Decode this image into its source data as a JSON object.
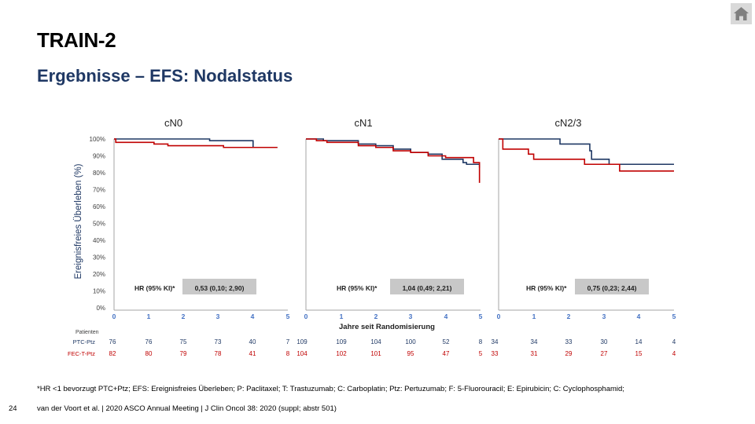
{
  "header": {
    "title": "TRAIN-2",
    "subtitle": "Ergebnisse – EFS: Nodalstatus"
  },
  "icons": {
    "home": "home-icon"
  },
  "colors": {
    "ptc": "#1f3864",
    "fec": "#c00000",
    "hr_box": "#c8c8c8",
    "axis": "#4472c4",
    "label": "#1f3864"
  },
  "chart_data": {
    "type": "line",
    "ylabel": "Ereignisfreies Überleben (%)",
    "xlabel": "Jahre seit Randomisierung",
    "y_ticks": [
      "0%",
      "10%",
      "20%",
      "30%",
      "40%",
      "50%",
      "60%",
      "70%",
      "80%",
      "90%",
      "100%"
    ],
    "x_ticks": [
      "0",
      "1",
      "2",
      "3",
      "4",
      "5"
    ],
    "ylim": [
      0,
      100
    ],
    "xlim": [
      0,
      5
    ],
    "hr_label": "HR (95% KI)*",
    "risk_table": {
      "header": "Patienten",
      "rows": [
        "PTC-Ptz",
        "FEC-T-Ptz"
      ]
    },
    "panels": [
      {
        "title": "cN0",
        "hr_value": "0,53 (0,10; 2,90)",
        "series": [
          {
            "name": "PTC-Ptz",
            "points": [
              [
                0,
                100
              ],
              [
                2.7,
                100
              ],
              [
                2.75,
                99
              ],
              [
                3.9,
                99
              ],
              [
                4,
                95
              ],
              [
                4.7,
                95
              ]
            ]
          },
          {
            "name": "FEC-T-Ptz",
            "points": [
              [
                0,
                100
              ],
              [
                0.05,
                98
              ],
              [
                1.1,
                98
              ],
              [
                1.15,
                97
              ],
              [
                1.5,
                97
              ],
              [
                1.55,
                96
              ],
              [
                3.1,
                96
              ],
              [
                3.15,
                95
              ],
              [
                4.7,
                95
              ]
            ]
          }
        ],
        "at_risk": {
          "PTC-Ptz": [
            "76",
            "76",
            "75",
            "73",
            "40",
            "7"
          ],
          "FEC-T-Ptz": [
            "82",
            "80",
            "79",
            "78",
            "41",
            "8"
          ]
        }
      },
      {
        "title": "cN1",
        "hr_value": "1,04 (0,49; 2,21)",
        "series": [
          {
            "name": "PTC-Ptz",
            "points": [
              [
                0,
                100
              ],
              [
                0.5,
                99
              ],
              [
                1.2,
                99
              ],
              [
                1.5,
                97
              ],
              [
                2,
                96
              ],
              [
                2.5,
                94
              ],
              [
                3,
                92
              ],
              [
                3.5,
                91
              ],
              [
                3.9,
                88
              ],
              [
                4.5,
                86
              ],
              [
                4.6,
                85
              ],
              [
                4.95,
                85
              ],
              [
                4.97,
                83
              ]
            ]
          },
          {
            "name": "FEC-T-Ptz",
            "points": [
              [
                0,
                100
              ],
              [
                0.3,
                99
              ],
              [
                0.6,
                98
              ],
              [
                1.2,
                98
              ],
              [
                1.5,
                96
              ],
              [
                2,
                95
              ],
              [
                2.5,
                93
              ],
              [
                3,
                92
              ],
              [
                3.5,
                90
              ],
              [
                4,
                89
              ],
              [
                4.7,
                89
              ],
              [
                4.8,
                86
              ],
              [
                4.95,
                86
              ],
              [
                4.97,
                74
              ]
            ]
          }
        ],
        "at_risk": {
          "PTC-Ptz": [
            "109",
            "109",
            "104",
            "100",
            "52",
            "8"
          ],
          "FEC-T-Ptz": [
            "104",
            "102",
            "101",
            "95",
            "47",
            "5"
          ]
        }
      },
      {
        "title": "cN2/3",
        "hr_value": "0,75 (0,23; 2,44)",
        "series": [
          {
            "name": "PTC-Ptz",
            "points": [
              [
                0,
                100
              ],
              [
                1.7,
                100
              ],
              [
                1.75,
                97
              ],
              [
                2.5,
                97
              ],
              [
                2.6,
                93
              ],
              [
                2.65,
                88
              ],
              [
                3.1,
                88
              ],
              [
                3.15,
                85
              ],
              [
                5,
                85
              ]
            ]
          },
          {
            "name": "FEC-T-Ptz",
            "points": [
              [
                0,
                100
              ],
              [
                0.1,
                100
              ],
              [
                0.12,
                94
              ],
              [
                0.8,
                94
              ],
              [
                0.85,
                91
              ],
              [
                0.95,
                91
              ],
              [
                1,
                88
              ],
              [
                2.4,
                88
              ],
              [
                2.45,
                85
              ],
              [
                3.4,
                85
              ],
              [
                3.45,
                81
              ],
              [
                5,
                81
              ]
            ]
          }
        ],
        "at_risk": {
          "PTC-Ptz": [
            "34",
            "34",
            "33",
            "30",
            "14",
            "4"
          ],
          "FEC-T-Ptz": [
            "33",
            "31",
            "29",
            "27",
            "15",
            "4"
          ]
        }
      }
    ]
  },
  "footer": {
    "footnote": "*HR <1 bevorzugt PTC+Ptz; EFS: Ereignisfreies Überleben; P: Paclitaxel; T: Trastuzumab; C: Carboplatin; Ptz: Pertuzumab; F: 5-Fluorouracil; E: Epirubicin; C: Cyclophosphamid;",
    "page_number": "24",
    "reference": "van der Voort et al. | 2020 ASCO Annual Meeting | J Clin Oncol 38: 2020 (suppl; abstr 501)"
  }
}
